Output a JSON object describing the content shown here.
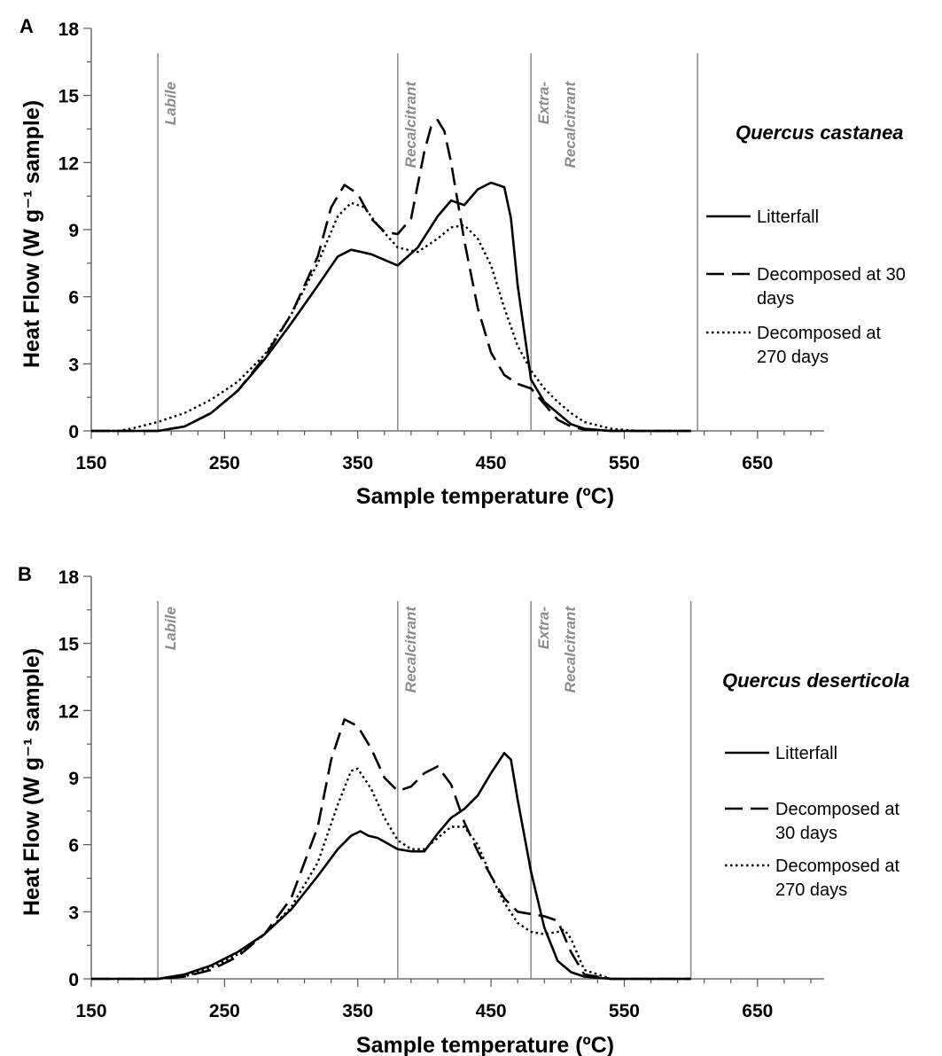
{
  "chart_data": [
    {
      "panel": "A",
      "type": "line",
      "species": "Quercus castanea",
      "xlabel": "Sample temperature (ºC)",
      "ylabel": "Heat Flow  (W g⁻¹ sample)",
      "xlim": [
        150,
        700
      ],
      "ylim": [
        0,
        18
      ],
      "xticks": [
        150,
        250,
        350,
        450,
        550,
        650
      ],
      "yticks": [
        0,
        3,
        6,
        9,
        12,
        15,
        18
      ],
      "region_boundaries": [
        200,
        380,
        480,
        605
      ],
      "regions": [
        "Labile",
        "Recalcitrant",
        "Extra-Recalcitrant"
      ],
      "region_lines": [
        [
          "Labile"
        ],
        [
          "Recalcitrant"
        ],
        [
          "Extra-",
          "Recalcitrant"
        ]
      ],
      "series": [
        {
          "name": "Litterfall",
          "legend_lines": [
            "Litterfall"
          ],
          "style": "solid",
          "x": [
            150,
            180,
            200,
            220,
            240,
            260,
            280,
            300,
            320,
            335,
            345,
            360,
            380,
            395,
            410,
            420,
            430,
            440,
            450,
            460,
            465,
            470,
            480,
            490,
            500,
            510,
            520,
            540,
            560,
            600
          ],
          "y": [
            0,
            0,
            0,
            0.2,
            0.8,
            1.8,
            3.2,
            4.8,
            6.5,
            7.8,
            8.1,
            7.9,
            7.4,
            8.2,
            9.6,
            10.3,
            10.1,
            10.8,
            11.1,
            10.9,
            9.5,
            6.5,
            2.3,
            1.3,
            0.8,
            0.3,
            0.1,
            0,
            0,
            0
          ]
        },
        {
          "name": "Decomposed at 30 days",
          "legend_lines": [
            "Decomposed at 30",
            "days"
          ],
          "style": "dashed",
          "x": [
            150,
            180,
            200,
            220,
            240,
            260,
            280,
            300,
            320,
            330,
            340,
            350,
            360,
            370,
            380,
            390,
            400,
            405,
            410,
            415,
            420,
            430,
            440,
            450,
            460,
            470,
            480,
            490,
            500,
            510,
            520,
            540,
            560,
            600
          ],
          "y": [
            0,
            0,
            0,
            0.2,
            0.8,
            1.8,
            3.3,
            5.2,
            7.8,
            10.0,
            11.0,
            10.6,
            9.5,
            8.9,
            8.8,
            9.5,
            12.5,
            13.6,
            13.9,
            13.4,
            12.0,
            8.5,
            5.5,
            3.5,
            2.5,
            2.1,
            1.9,
            1.2,
            0.5,
            0.2,
            0.05,
            0,
            0,
            0
          ]
        },
        {
          "name": "Decomposed at 270 days",
          "legend_lines": [
            "Decomposed at",
            "270 days"
          ],
          "style": "dotted",
          "x": [
            150,
            170,
            180,
            200,
            220,
            240,
            260,
            280,
            300,
            320,
            335,
            345,
            355,
            365,
            380,
            395,
            410,
            420,
            430,
            440,
            450,
            460,
            470,
            480,
            490,
            500,
            510,
            520,
            540,
            560,
            600
          ],
          "y": [
            0,
            0,
            0.1,
            0.4,
            0.8,
            1.4,
            2.2,
            3.4,
            5.2,
            7.5,
            9.6,
            10.2,
            10.0,
            9.2,
            8.2,
            8.0,
            8.6,
            9.1,
            9.2,
            8.6,
            7.4,
            5.5,
            3.8,
            2.7,
            1.9,
            1.3,
            0.8,
            0.4,
            0.1,
            0,
            0
          ]
        }
      ]
    },
    {
      "panel": "B",
      "type": "line",
      "species": "Quercus deserticola",
      "xlabel": "Sample temperature (ºC)",
      "ylabel": "Heat Flow  (W g⁻¹ sample)",
      "xlim": [
        150,
        700
      ],
      "ylim": [
        0,
        18
      ],
      "xticks": [
        150,
        250,
        350,
        450,
        550,
        650
      ],
      "yticks": [
        0,
        3,
        6,
        9,
        12,
        15,
        18
      ],
      "region_boundaries": [
        200,
        380,
        480,
        600
      ],
      "regions": [
        "Labile",
        "Recalcitrant",
        "Extra-Recalcitrant"
      ],
      "region_lines": [
        [
          "Labile"
        ],
        [
          "Recalcitrant"
        ],
        [
          "Extra-",
          "Recalcitrant"
        ]
      ],
      "series": [
        {
          "name": "Litterfall",
          "legend_lines": [
            "Litterfall"
          ],
          "style": "solid",
          "x": [
            150,
            180,
            200,
            220,
            240,
            260,
            280,
            300,
            320,
            335,
            345,
            352,
            358,
            365,
            380,
            390,
            400,
            410,
            420,
            430,
            440,
            450,
            460,
            465,
            470,
            480,
            490,
            500,
            510,
            520,
            540,
            560,
            600
          ],
          "y": [
            0,
            0,
            0,
            0.2,
            0.6,
            1.2,
            2.0,
            3.1,
            4.6,
            5.8,
            6.4,
            6.6,
            6.4,
            6.3,
            5.8,
            5.7,
            5.7,
            6.5,
            7.2,
            7.6,
            8.2,
            9.2,
            10.1,
            9.8,
            8.0,
            4.8,
            2.3,
            0.8,
            0.3,
            0.1,
            0,
            0,
            0
          ]
        },
        {
          "name": "Decomposed at 30 days",
          "legend_lines": [
            "Decomposed at",
            "30 days"
          ],
          "style": "dashed",
          "x": [
            150,
            180,
            200,
            220,
            240,
            260,
            280,
            300,
            320,
            330,
            340,
            350,
            360,
            370,
            380,
            390,
            400,
            410,
            420,
            430,
            440,
            450,
            460,
            470,
            480,
            490,
            500,
            510,
            520,
            540,
            560,
            600
          ],
          "y": [
            0,
            0,
            0,
            0.1,
            0.4,
            1.0,
            2.0,
            3.6,
            6.8,
            9.8,
            11.6,
            11.3,
            10.3,
            9.0,
            8.4,
            8.6,
            9.2,
            9.5,
            8.7,
            7.0,
            5.7,
            4.6,
            3.6,
            3.0,
            2.9,
            2.8,
            2.6,
            1.2,
            0.2,
            0,
            0,
            0
          ]
        },
        {
          "name": "Decomposed at 270 days",
          "legend_lines": [
            "Decomposed at",
            "270 days"
          ],
          "style": "dotted",
          "x": [
            150,
            180,
            200,
            220,
            240,
            260,
            280,
            300,
            320,
            335,
            345,
            350,
            360,
            370,
            380,
            390,
            400,
            410,
            420,
            430,
            440,
            450,
            460,
            470,
            480,
            490,
            500,
            505,
            510,
            520,
            540,
            560,
            600
          ],
          "y": [
            0,
            0,
            0,
            0.1,
            0.5,
            1.1,
            2.0,
            3.2,
            5.2,
            7.8,
            9.3,
            9.4,
            8.5,
            7.2,
            6.2,
            5.8,
            5.8,
            6.3,
            6.8,
            6.8,
            6.0,
            4.6,
            3.4,
            2.5,
            2.1,
            2.0,
            2.1,
            2.2,
            1.8,
            0.4,
            0,
            0,
            0
          ]
        }
      ]
    }
  ],
  "panel_order": [
    "A",
    "B"
  ]
}
